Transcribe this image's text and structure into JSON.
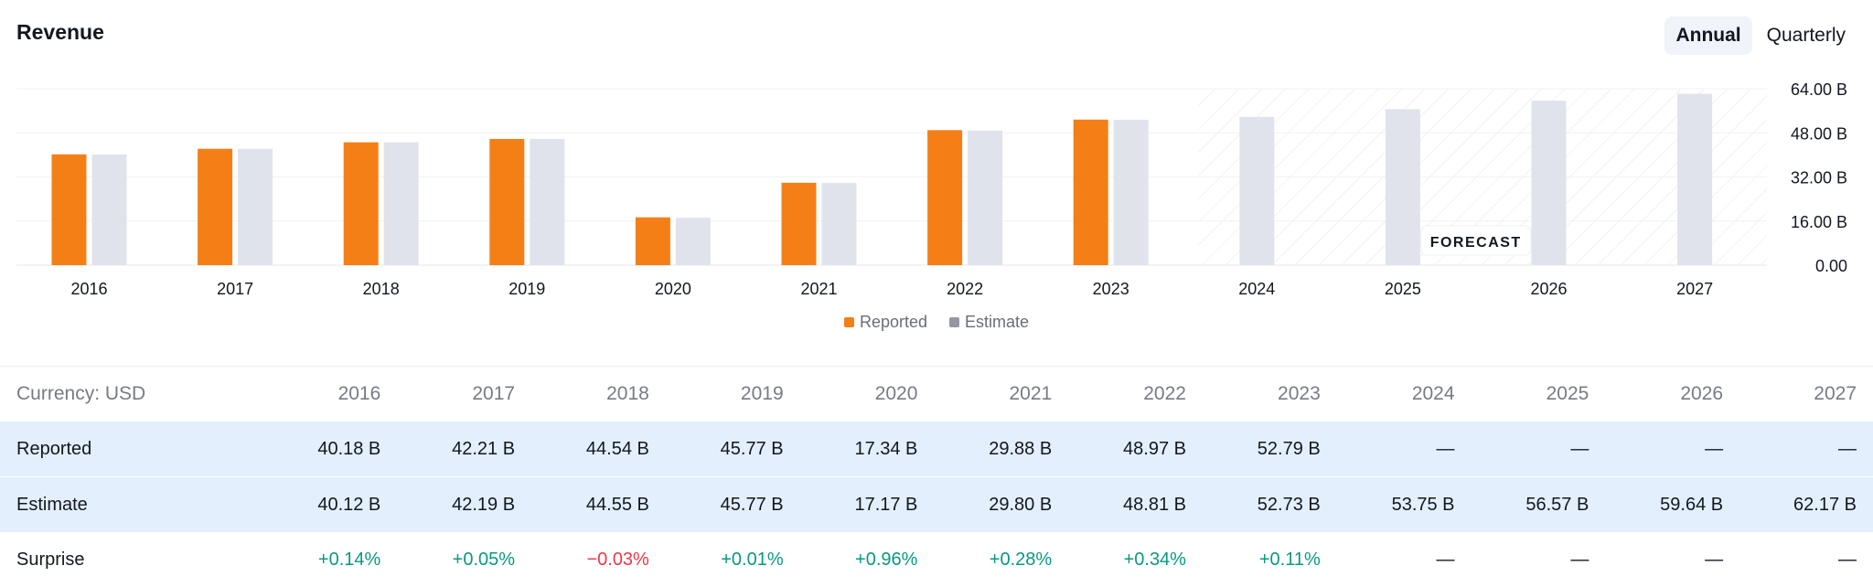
{
  "header": {
    "title": "Revenue",
    "period_options": [
      "Annual",
      "Quarterly"
    ],
    "active_period": "Annual"
  },
  "colors": {
    "reported": "#f57f17",
    "estimate": "#e0e3eb",
    "positive": "#089981",
    "negative": "#f23645"
  },
  "chart_data": {
    "type": "bar",
    "categories": [
      "2016",
      "2017",
      "2018",
      "2019",
      "2020",
      "2021",
      "2022",
      "2023",
      "2024",
      "2025",
      "2026",
      "2027"
    ],
    "series": [
      {
        "name": "Reported",
        "values": [
          40.18,
          42.21,
          44.54,
          45.77,
          17.34,
          29.88,
          48.97,
          52.79,
          null,
          null,
          null,
          null
        ]
      },
      {
        "name": "Estimate",
        "values": [
          40.12,
          42.19,
          44.55,
          45.77,
          17.17,
          29.8,
          48.81,
          52.73,
          53.75,
          56.57,
          59.64,
          62.17
        ]
      }
    ],
    "y_ticks": [
      "64.00 B",
      "48.00 B",
      "32.00 B",
      "16.00 B",
      "0.00"
    ],
    "ylim": [
      0,
      64
    ],
    "unit": "B",
    "forecast_label": "FORECAST",
    "forecast_from": "2024",
    "legend": [
      "Reported",
      "Estimate"
    ],
    "legend_position": "bottom-center",
    "grid": true
  },
  "table": {
    "currency_label": "Currency: USD",
    "years": [
      "2016",
      "2017",
      "2018",
      "2019",
      "2020",
      "2021",
      "2022",
      "2023",
      "2024",
      "2025",
      "2026",
      "2027"
    ],
    "rows": [
      {
        "label": "Reported",
        "highlight": true,
        "cells": [
          "40.18 B",
          "42.21 B",
          "44.54 B",
          "45.77 B",
          "17.34 B",
          "29.88 B",
          "48.97 B",
          "52.79 B",
          "—",
          "—",
          "—",
          "—"
        ]
      },
      {
        "label": "Estimate",
        "highlight": true,
        "cells": [
          "40.12 B",
          "42.19 B",
          "44.55 B",
          "45.77 B",
          "17.17 B",
          "29.80 B",
          "48.81 B",
          "52.73 B",
          "53.75 B",
          "56.57 B",
          "59.64 B",
          "62.17 B"
        ]
      },
      {
        "label": "Surprise",
        "highlight": false,
        "cells": [
          "+0.14%",
          "+0.05%",
          "−0.03%",
          "+0.01%",
          "+0.96%",
          "+0.28%",
          "+0.34%",
          "+0.11%",
          "—",
          "—",
          "—",
          "—"
        ]
      }
    ]
  }
}
